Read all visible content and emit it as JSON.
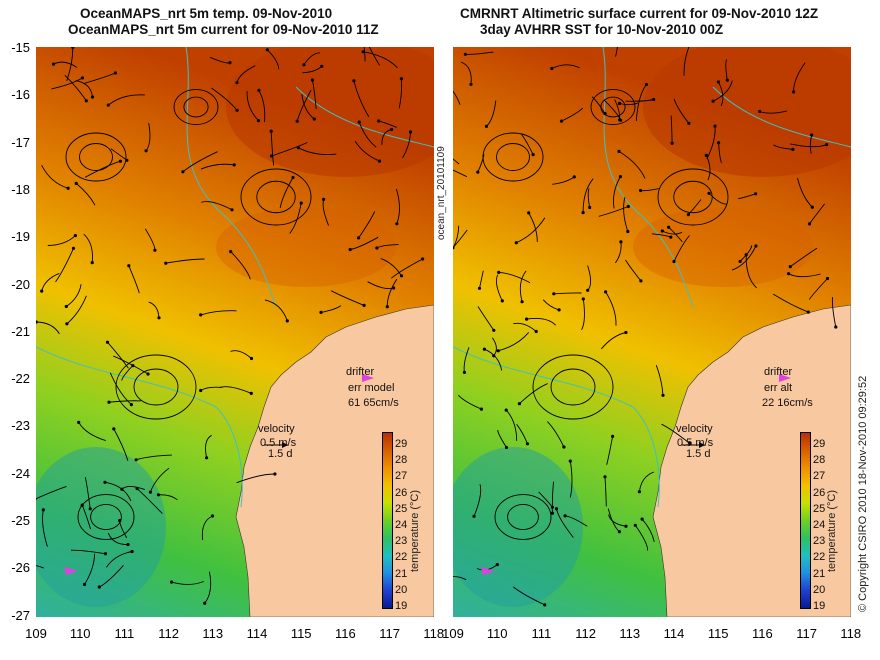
{
  "left_panel": {
    "title_line1": "OceanMAPS_nrt 5m temp. 09-Nov-2010",
    "title_line2": "OceanMAPS_nrt 5m current for 09-Nov-2010 11Z",
    "drifter_label": "drifter",
    "err_label": "err model",
    "err_values": "61 65cm/s",
    "velocity_label": "velocity",
    "velocity_scale": "0.5 m/s",
    "velocity_duration": "1.5 d",
    "colorbar_label": "temperature (°C)"
  },
  "right_panel": {
    "title_line1": "CMRNRT Altimetric surface current for 09-Nov-2010 12Z",
    "title_line2": "3day AVHRR SST for 10-Nov-2010 00Z",
    "drifter_label": "drifter",
    "err_label": "err alt",
    "err_values": "22 16cm/s",
    "velocity_label": "velocity",
    "velocity_scale": "0.5 m/s",
    "velocity_duration": "1.5 d",
    "colorbar_label": "temperature (°C)"
  },
  "side_label": "ocean_nrt_20101109",
  "copyright": "© Copyright CSIRO 2010   18-Nov-2010 09:29:52",
  "y_ticks": [
    "-15",
    "-16",
    "-17",
    "-18",
    "-19",
    "-20",
    "-21",
    "-22",
    "-23",
    "-24",
    "-25",
    "-26",
    "-27"
  ],
  "x_ticks": [
    "109",
    "110",
    "111",
    "112",
    "113",
    "114",
    "115",
    "116",
    "117",
    "118"
  ],
  "colorbar_ticks": [
    "29",
    "28",
    "27",
    "26",
    "25",
    "24",
    "23",
    "22",
    "21",
    "20",
    "19"
  ],
  "colors": {
    "land": "#f8c8a0",
    "coast": "#40c0c0",
    "drifter": "#e040e0",
    "warm": "#c04000",
    "mid": "#f0a000",
    "cool": "#40c020"
  }
}
